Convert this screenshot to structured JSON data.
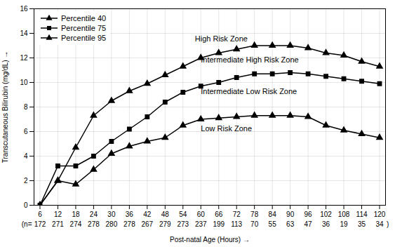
{
  "chart_data": {
    "type": "line",
    "xlabel": "Post-natal Age (Hours)",
    "ylabel": "Transcutaneous Bilirubin (mg/dL)",
    "x": [
      6,
      12,
      18,
      24,
      30,
      36,
      42,
      48,
      54,
      60,
      66,
      72,
      78,
      84,
      90,
      96,
      102,
      108,
      114,
      120
    ],
    "n_labels": [
      "172",
      "271",
      "274",
      "278",
      "280",
      "278",
      "267",
      "279",
      "273",
      "237",
      "199",
      "113",
      "70",
      "55",
      "63",
      "47",
      "36",
      "19",
      "35",
      "34"
    ],
    "n_prefix": "(n=",
    "n_suffix": ")",
    "series": [
      {
        "name": "Percentile 40",
        "color": "#000000",
        "marker": "triangle",
        "values": [
          0.0,
          2.0,
          1.7,
          2.9,
          4.2,
          4.8,
          5.2,
          5.5,
          6.5,
          7.0,
          7.1,
          7.2,
          7.3,
          7.3,
          7.3,
          7.2,
          6.5,
          6.1,
          5.8,
          5.5
        ]
      },
      {
        "name": "Percentile 75",
        "color": "#000000",
        "marker": "square",
        "values": [
          0.0,
          3.2,
          3.2,
          4.0,
          5.2,
          6.2,
          7.2,
          8.4,
          9.2,
          9.7,
          10.0,
          10.4,
          10.7,
          10.7,
          10.8,
          10.7,
          10.5,
          10.3,
          10.1,
          9.9
        ]
      },
      {
        "name": "Percentile 95",
        "color": "#000000",
        "marker": "triangle",
        "values": [
          0.0,
          2.0,
          4.7,
          7.3,
          8.5,
          9.3,
          9.9,
          10.6,
          11.3,
          12.0,
          12.4,
          12.7,
          13.0,
          13.0,
          13.0,
          12.8,
          12.4,
          12.2,
          11.7,
          11.3
        ]
      }
    ],
    "annotations": [
      {
        "text": "High Risk Zone",
        "x": 58,
        "y": 13.55
      },
      {
        "text": "Intermediate High Risk Zone",
        "x": 60,
        "y": 11.85
      },
      {
        "text": "Intermediate Low Risk Zone",
        "x": 60,
        "y": 9.25
      },
      {
        "text": "Low Risk Zone",
        "x": 60,
        "y": 6.25
      }
    ],
    "xlim": [
      4,
      122
    ],
    "xticks": [
      6,
      12,
      18,
      24,
      30,
      36,
      42,
      48,
      54,
      60,
      66,
      72,
      78,
      84,
      90,
      96,
      102,
      108,
      114,
      120
    ],
    "ylim": [
      0,
      16
    ],
    "yticks": [
      0,
      2,
      4,
      6,
      8,
      10,
      12,
      14,
      16
    ],
    "grid": true,
    "legend": "upper left"
  }
}
